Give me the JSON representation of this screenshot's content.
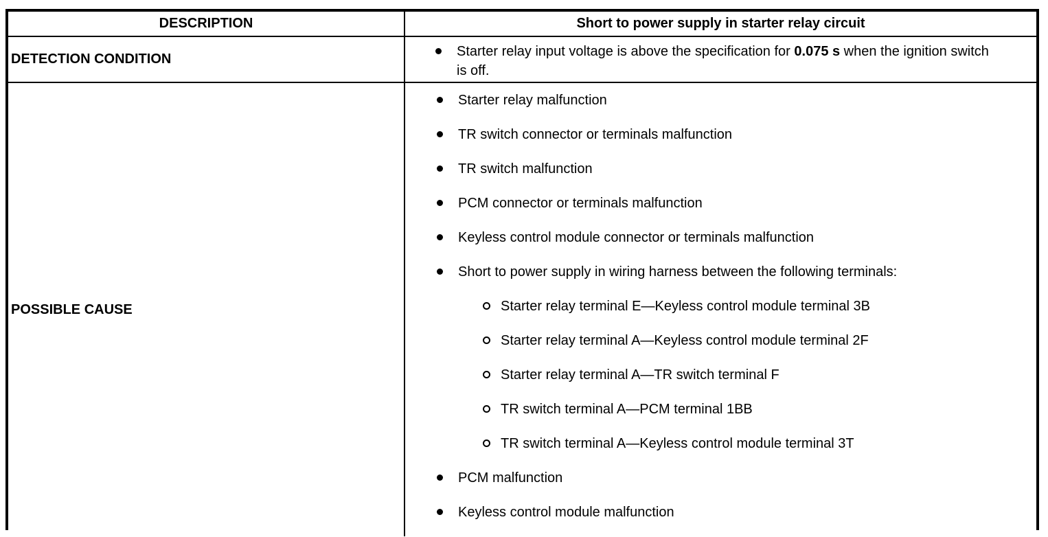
{
  "header": {
    "description": "DESCRIPTION",
    "title": "Short to power supply in starter relay circuit"
  },
  "detection": {
    "label": "DETECTION CONDITION",
    "item": {
      "pre": "Starter relay input voltage is above the specification for ",
      "bold": "0.075 s",
      "post": " when the ignition switch is off."
    }
  },
  "possible_cause": {
    "label": "POSSIBLE CAUSE",
    "items": [
      {
        "level": "main",
        "text": "Starter relay malfunction"
      },
      {
        "level": "main",
        "text": "TR switch connector or terminals malfunction"
      },
      {
        "level": "main",
        "text": "TR switch malfunction"
      },
      {
        "level": "main",
        "text": "PCM connector or terminals malfunction"
      },
      {
        "level": "main",
        "text": "Keyless control module connector or terminals malfunction"
      },
      {
        "level": "main",
        "text": "Short to power supply in wiring harness between the following terminals:"
      },
      {
        "level": "sub",
        "text": "Starter relay terminal E—Keyless control module terminal 3B"
      },
      {
        "level": "sub",
        "text": "Starter relay terminal A—Keyless control module terminal 2F"
      },
      {
        "level": "sub",
        "text": "Starter relay terminal A—TR switch terminal F"
      },
      {
        "level": "sub",
        "text": "TR switch terminal A—PCM terminal 1BB"
      },
      {
        "level": "sub",
        "text": "TR switch terminal A—Keyless control module terminal 3T"
      },
      {
        "level": "main",
        "text": "PCM malfunction"
      },
      {
        "level": "main",
        "text": "Keyless control module malfunction"
      }
    ]
  },
  "colors": {
    "border": "#000000",
    "text": "#000000",
    "background": "#ffffff"
  }
}
